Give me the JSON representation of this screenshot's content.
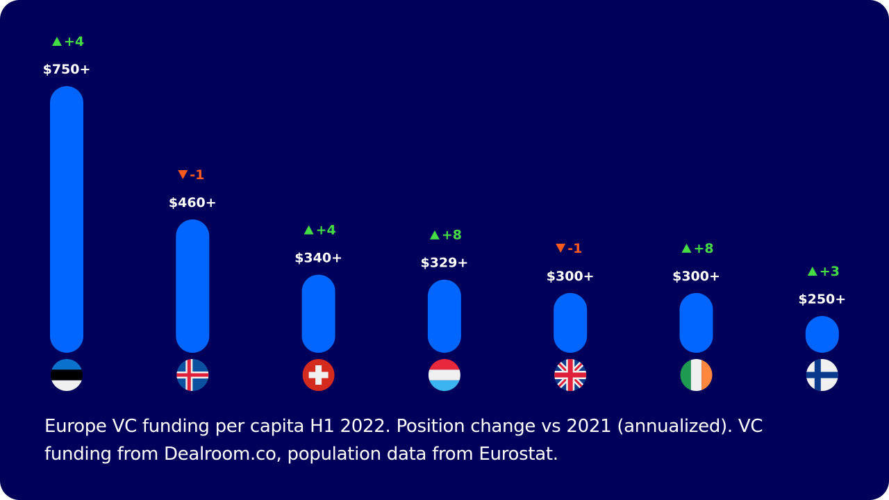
{
  "chart_data": {
    "type": "bar",
    "categories": [
      "Estonia",
      "Iceland",
      "Switzerland",
      "Luxembourg",
      "United Kingdom",
      "Ireland",
      "Finland"
    ],
    "values": [
      750,
      460,
      340,
      329,
      300,
      300,
      250
    ],
    "value_labels": [
      "$750+",
      "$460+",
      "$340+",
      "$329+",
      "$300+",
      "$300+",
      "$250+"
    ],
    "position_change": [
      4,
      -1,
      4,
      8,
      -1,
      8,
      3
    ],
    "change_labels": [
      "+4",
      "-1",
      "+4",
      "+8",
      "-1",
      "+8",
      "+3"
    ],
    "flags": [
      "estonia-flag",
      "iceland-flag",
      "switzerland-flag",
      "luxembourg-flag",
      "uk-flag",
      "ireland-flag",
      "finland-flag"
    ],
    "title": "",
    "grid": false,
    "colors": {
      "background": "#00005a",
      "bar": "#0066ff",
      "up": "#44dd44",
      "down": "#ff5a1e",
      "label": "#ffffff"
    }
  },
  "caption": "Europe VC funding per capita H1 2022. Position change vs 2021 (annualized). VC funding from Dealroom.co, population data from Eurostat."
}
